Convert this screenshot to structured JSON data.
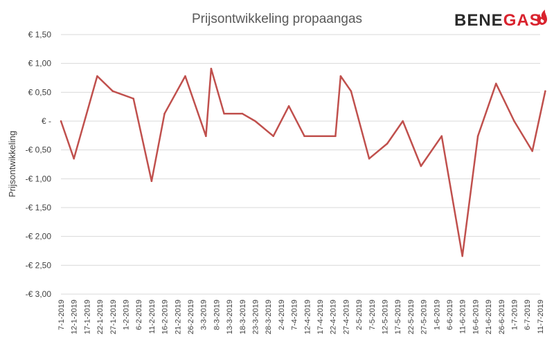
{
  "logo": {
    "part1": "BENE",
    "part2": "GAS"
  },
  "colors": {
    "line": "#c0504d",
    "grid": "#d9d9d9",
    "logo_red": "#d9232e",
    "logo_dark": "#2b2b2b"
  },
  "chart_data": {
    "type": "line",
    "title": "Prijsontwikkeling propaangas",
    "xlabel": "",
    "ylabel": "Prijsontwikkeling",
    "ylim": [
      -3.0,
      1.5
    ],
    "grid": true,
    "legend": "none",
    "y_ticks": [
      {
        "value": 1.5,
        "label": "€ 1,50"
      },
      {
        "value": 1.0,
        "label": "€ 1,00"
      },
      {
        "value": 0.5,
        "label": "€ 0,50"
      },
      {
        "value": 0.0,
        "label": "€ -"
      },
      {
        "value": -0.5,
        "label": "-€ 0,50"
      },
      {
        "value": -1.0,
        "label": "-€ 1,00"
      },
      {
        "value": -1.5,
        "label": "-€ 1,50"
      },
      {
        "value": -2.0,
        "label": "-€ 2,00"
      },
      {
        "value": -2.5,
        "label": "-€ 2,50"
      },
      {
        "value": -3.0,
        "label": "-€ 3,00"
      }
    ],
    "x_tick_labels": [
      "7-1-2019",
      "12-1-2019",
      "17-1-2019",
      "22-1-2019",
      "27-1-2019",
      "1-2-2019",
      "6-2-2019",
      "11-2-2019",
      "16-2-2019",
      "21-2-2019",
      "26-2-2019",
      "3-3-2019",
      "8-3-2019",
      "13-3-2019",
      "18-3-2019",
      "23-3-2019",
      "28-3-2019",
      "2-4-2019",
      "7-4-2019",
      "12-4-2019",
      "17-4-2019",
      "22-4-2019",
      "27-4-2019",
      "2-5-2019",
      "7-5-2019",
      "12-5-2019",
      "17-5-2019",
      "22-5-2019",
      "27-5-2019",
      "1-6-2019",
      "6-6-2019",
      "11-6-2019",
      "16-6-2019",
      "21-6-2019",
      "26-6-2019",
      "1-7-2019",
      "6-7-2019",
      "11-7-2019"
    ],
    "x_range": [
      "2019-01-07",
      "2019-07-11"
    ],
    "series": [
      {
        "points": [
          {
            "x": "2019-01-07",
            "y": 0.0
          },
          {
            "x": "2019-01-12",
            "y": -0.65
          },
          {
            "x": "2019-01-21",
            "y": 0.78
          },
          {
            "x": "2019-01-27",
            "y": 0.52
          },
          {
            "x": "2019-02-04",
            "y": 0.39
          },
          {
            "x": "2019-02-11",
            "y": -1.04
          },
          {
            "x": "2019-02-16",
            "y": 0.13
          },
          {
            "x": "2019-02-24",
            "y": 0.78
          },
          {
            "x": "2019-03-04",
            "y": -0.26
          },
          {
            "x": "2019-03-06",
            "y": 0.91
          },
          {
            "x": "2019-03-11",
            "y": 0.13
          },
          {
            "x": "2019-03-18",
            "y": 0.13
          },
          {
            "x": "2019-03-23",
            "y": 0.0
          },
          {
            "x": "2019-03-30",
            "y": -0.26
          },
          {
            "x": "2019-04-05",
            "y": 0.26
          },
          {
            "x": "2019-04-11",
            "y": -0.26
          },
          {
            "x": "2019-04-23",
            "y": -0.26
          },
          {
            "x": "2019-04-25",
            "y": 0.78
          },
          {
            "x": "2019-04-29",
            "y": 0.52
          },
          {
            "x": "2019-05-06",
            "y": -0.65
          },
          {
            "x": "2019-05-13",
            "y": -0.39
          },
          {
            "x": "2019-05-19",
            "y": 0.0
          },
          {
            "x": "2019-05-26",
            "y": -0.78
          },
          {
            "x": "2019-06-03",
            "y": -0.26
          },
          {
            "x": "2019-06-11",
            "y": -2.34
          },
          {
            "x": "2019-06-17",
            "y": -0.26
          },
          {
            "x": "2019-06-24",
            "y": 0.65
          },
          {
            "x": "2019-07-01",
            "y": 0.0
          },
          {
            "x": "2019-07-08",
            "y": -0.52
          },
          {
            "x": "2019-07-13",
            "y": 0.52
          }
        ]
      }
    ]
  }
}
